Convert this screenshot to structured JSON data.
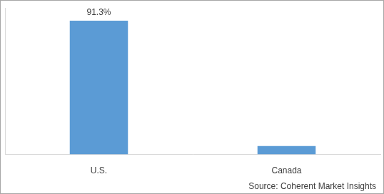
{
  "chart_data": {
    "type": "bar",
    "categories": [
      "U.S.",
      "Canada"
    ],
    "values": [
      91.3,
      5.8
    ],
    "value_labels": [
      "91.3%",
      null
    ],
    "color": "#5b9bd5",
    "ylim": [
      0,
      100
    ],
    "grid": false,
    "data_labels": true,
    "tick_labels": "x",
    "annotations": [
      "Source: Coherent Market Insights"
    ]
  }
}
